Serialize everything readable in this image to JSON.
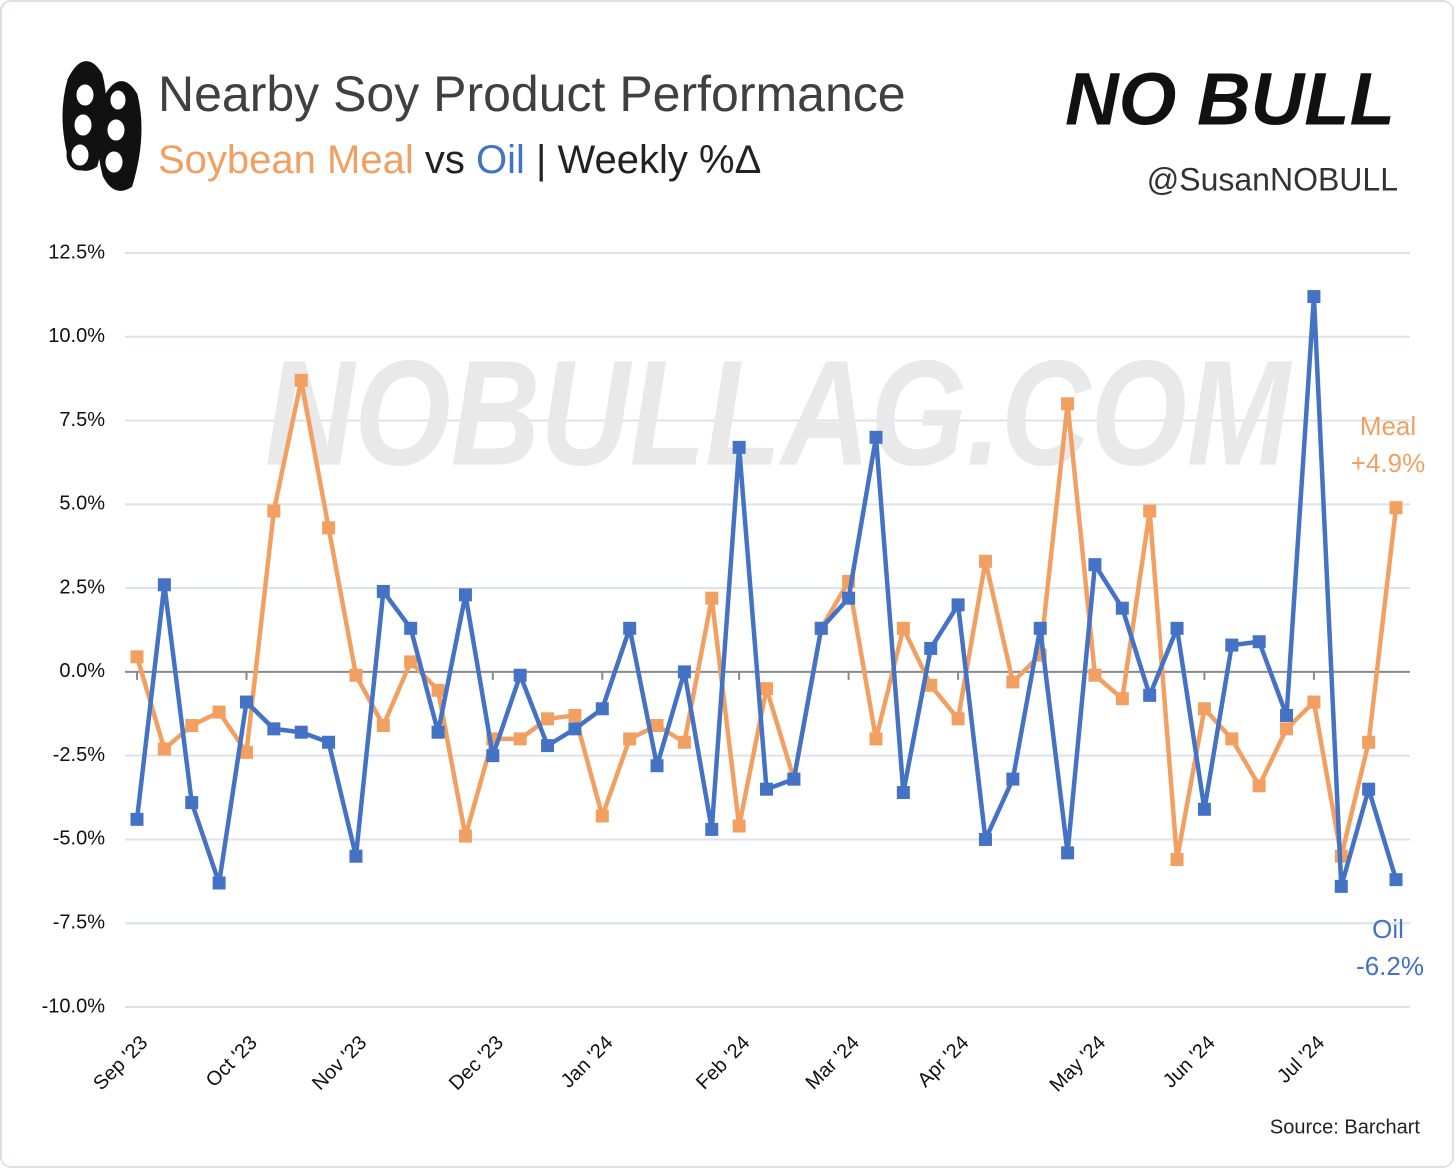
{
  "chart_data": {
    "type": "line",
    "title": "Nearby Soy Product Performance",
    "subtitle": [
      "Soybean Meal",
      "vs",
      "Oil",
      "| Weekly %Δ"
    ],
    "brand": "NO BULL",
    "handle": "@SusanNOBULL",
    "watermark": "NOBULLAG.COM",
    "source": "Source: Barchart",
    "annotations": [
      "Meal",
      "+4.9%",
      "Oil",
      "-6.2%"
    ],
    "categories": [
      "Sep '23",
      null,
      null,
      null,
      "Oct '23",
      null,
      null,
      null,
      "Nov '23",
      null,
      null,
      null,
      null,
      "Dec '23",
      null,
      null,
      null,
      "Jan '24",
      null,
      null,
      null,
      null,
      "Feb '24",
      null,
      null,
      null,
      "Mar '24",
      null,
      null,
      null,
      "Apr '24",
      null,
      null,
      null,
      null,
      "May '24",
      null,
      null,
      null,
      "Jun '24",
      null,
      null,
      null,
      "Jul '24",
      null,
      null,
      null
    ],
    "series": [
      {
        "name": "Meal",
        "color": "#F2A062",
        "values": [
          0.45,
          -2.3,
          -1.6,
          -1.2,
          -2.4,
          4.8,
          8.7,
          4.3,
          -0.1,
          -1.6,
          0.3,
          -0.55,
          -4.9,
          -2.0,
          -2.0,
          -1.4,
          -1.3,
          -4.3,
          -2.0,
          -1.6,
          -2.1,
          2.2,
          -4.6,
          -0.5,
          -3.2,
          1.3,
          2.7,
          -2.0,
          1.3,
          -0.4,
          -1.4,
          3.3,
          -0.3,
          0.5,
          8.0,
          -0.1,
          -0.8,
          4.8,
          -5.6,
          -1.1,
          -2.0,
          -3.4,
          -1.7,
          -0.9,
          -5.5,
          -2.1,
          4.9
        ]
      },
      {
        "name": "Oil",
        "color": "#4472C4",
        "values": [
          -4.4,
          2.6,
          -3.9,
          -6.3,
          -0.9,
          -1.7,
          -1.8,
          -2.1,
          -5.5,
          2.4,
          1.3,
          -1.8,
          2.3,
          -2.5,
          -0.1,
          -2.2,
          -1.7,
          -1.1,
          1.3,
          -2.8,
          0.0,
          -4.7,
          6.7,
          -3.5,
          -3.2,
          1.3,
          2.2,
          7.0,
          -3.6,
          0.7,
          2.0,
          -5.0,
          -3.2,
          1.3,
          -5.4,
          3.2,
          1.9,
          -0.7,
          1.3,
          -4.1,
          0.8,
          0.9,
          -1.3,
          11.2,
          -6.4,
          -3.5,
          -6.2
        ]
      }
    ],
    "ylim": [
      -10,
      12.5
    ],
    "yticks": [
      {
        "value": -10,
        "label": "-10.0%"
      },
      {
        "value": -7.5,
        "label": "-7.5%"
      },
      {
        "value": -5,
        "label": "-5.0%"
      },
      {
        "value": -2.5,
        "label": "-2.5%"
      },
      {
        "value": 0,
        "label": "0.0%"
      },
      {
        "value": 2.5,
        "label": "2.5%"
      },
      {
        "value": 5,
        "label": "5.0%"
      },
      {
        "value": 7.5,
        "label": "7.5%"
      },
      {
        "value": 10,
        "label": "10.0%"
      },
      {
        "value": 12.5,
        "label": "12.5%"
      }
    ],
    "grid": true
  }
}
